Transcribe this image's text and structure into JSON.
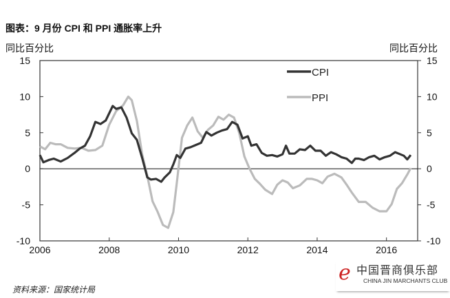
{
  "chart_data": {
    "type": "line",
    "title": "图表：9 月份 CPI 和 PPI 通胀率上升",
    "ylabel_left": "同比百分比",
    "ylabel_right": "同比百分比",
    "xlim": [
      2006,
      2016.9
    ],
    "ylim": [
      -10,
      15
    ],
    "xticks": [
      "2006",
      "2008",
      "2010",
      "2012",
      "2014",
      "2016"
    ],
    "yticks": [
      "15",
      "10",
      "5",
      "0",
      "-5",
      "-10"
    ],
    "legend_position": "top-right",
    "series": [
      {
        "name": "CPI",
        "color": "#333333",
        "x": [
          2006.0,
          2006.1,
          2006.25,
          2006.4,
          2006.6,
          2006.8,
          2007.0,
          2007.15,
          2007.3,
          2007.45,
          2007.6,
          2007.75,
          2007.9,
          2008.1,
          2008.2,
          2008.35,
          2008.5,
          2008.65,
          2008.8,
          2008.95,
          2009.1,
          2009.2,
          2009.35,
          2009.5,
          2009.6,
          2009.75,
          2009.85,
          2009.95,
          2010.05,
          2010.2,
          2010.35,
          2010.5,
          2010.65,
          2010.8,
          2010.95,
          2011.1,
          2011.25,
          2011.4,
          2011.55,
          2011.7,
          2011.85,
          2012.0,
          2012.1,
          2012.25,
          2012.4,
          2012.55,
          2012.7,
          2012.85,
          2013.0,
          2013.1,
          2013.2,
          2013.35,
          2013.5,
          2013.65,
          2013.8,
          2013.95,
          2014.1,
          2014.25,
          2014.4,
          2014.55,
          2014.7,
          2014.85,
          2015.0,
          2015.1,
          2015.2,
          2015.35,
          2015.5,
          2015.65,
          2015.8,
          2015.95,
          2016.1,
          2016.25,
          2016.4,
          2016.5,
          2016.6,
          2016.7
        ],
        "y": [
          1.9,
          0.9,
          1.2,
          1.4,
          1.0,
          1.5,
          2.2,
          2.8,
          3.2,
          4.5,
          6.5,
          6.2,
          6.7,
          8.7,
          8.3,
          8.5,
          7.1,
          4.9,
          4.0,
          1.5,
          -1.2,
          -1.5,
          -1.4,
          -1.8,
          -1.2,
          -0.5,
          0.6,
          1.9,
          1.5,
          2.8,
          3.0,
          3.3,
          3.6,
          5.1,
          4.6,
          5.0,
          5.3,
          5.5,
          6.5,
          6.1,
          4.2,
          4.5,
          3.2,
          3.4,
          2.2,
          1.8,
          1.9,
          1.7,
          2.0,
          3.2,
          2.1,
          2.1,
          2.7,
          2.6,
          3.2,
          2.5,
          2.5,
          1.8,
          2.3,
          2.0,
          1.6,
          1.4,
          0.8,
          1.4,
          1.4,
          1.2,
          1.6,
          1.8,
          1.3,
          1.6,
          1.8,
          2.3,
          2.0,
          1.8,
          1.3,
          1.9
        ]
      },
      {
        "name": "PPI",
        "color": "#bbbbbb",
        "x": [
          2006.0,
          2006.15,
          2006.3,
          2006.45,
          2006.6,
          2006.8,
          2007.0,
          2007.2,
          2007.4,
          2007.6,
          2007.8,
          2008.0,
          2008.2,
          2008.4,
          2008.55,
          2008.65,
          2008.8,
          2008.95,
          2009.1,
          2009.25,
          2009.4,
          2009.55,
          2009.7,
          2009.85,
          2009.95,
          2010.1,
          2010.25,
          2010.4,
          2010.55,
          2010.7,
          2010.85,
          2011.0,
          2011.15,
          2011.3,
          2011.45,
          2011.6,
          2011.75,
          2011.9,
          2012.05,
          2012.2,
          2012.35,
          2012.5,
          2012.7,
          2012.85,
          2013.0,
          2013.15,
          2013.3,
          2013.5,
          2013.7,
          2013.85,
          2014.0,
          2014.15,
          2014.3,
          2014.5,
          2014.7,
          2014.85,
          2015.0,
          2015.2,
          2015.4,
          2015.6,
          2015.8,
          2016.0,
          2016.15,
          2016.3,
          2016.45,
          2016.6,
          2016.7
        ],
        "y": [
          3.1,
          2.7,
          3.6,
          3.4,
          3.4,
          2.9,
          2.8,
          2.9,
          2.5,
          2.6,
          3.2,
          6.1,
          8.0,
          8.8,
          10.0,
          9.5,
          6.6,
          2.0,
          -1.0,
          -4.5,
          -6.0,
          -7.8,
          -8.2,
          -6.0,
          -2.0,
          4.3,
          6.0,
          7.1,
          5.2,
          4.3,
          5.4,
          6.0,
          7.2,
          6.8,
          7.5,
          7.1,
          5.0,
          1.7,
          0.0,
          -1.4,
          -2.1,
          -2.9,
          -3.5,
          -2.2,
          -1.6,
          -1.9,
          -2.7,
          -2.3,
          -1.4,
          -1.4,
          -1.6,
          -2.0,
          -1.1,
          -0.7,
          -1.2,
          -2.2,
          -3.3,
          -4.6,
          -4.6,
          -5.4,
          -5.9,
          -5.9,
          -4.9,
          -2.8,
          -2.0,
          -0.8,
          0.1
        ]
      }
    ]
  },
  "source": "资料来源：国家统计局",
  "logo": {
    "cn": "中国晋商俱乐部",
    "en": "CHINA JIN MARCHANTS CLUB"
  }
}
